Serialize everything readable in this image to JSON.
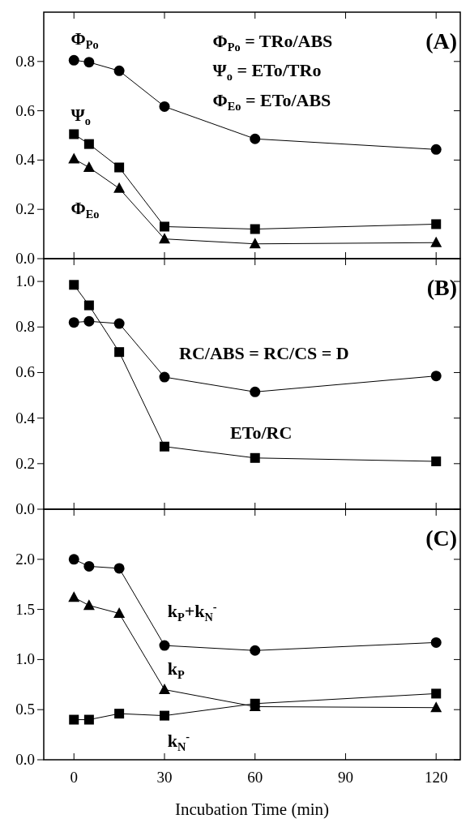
{
  "chart_data": [
    {
      "type": "line",
      "xlim": [
        -10,
        128
      ],
      "xticks": [
        0,
        30,
        60,
        90,
        120
      ],
      "ylim": [
        0,
        1.0
      ],
      "yticks": [
        {
          "value": 0,
          "label": "0.0"
        },
        0.2,
        0.4,
        0.6,
        0.8
      ],
      "tick_labels": "y",
      "grid": false,
      "line_style": "solid",
      "annotations": [
        "Φ$_{Po}$ = TRo/ABS",
        "Ψ$_{o}$ = ETo/TRo",
        "Φ$_{Eo}$ = ETo/ABS",
        "(A)"
      ],
      "series": [
        {
          "name": "Φ$_{Po}$",
          "color": "#000000",
          "marker": "circle",
          "x": [
            0,
            5,
            15,
            30,
            60,
            120
          ],
          "values": [
            0.805,
            0.797,
            0.762,
            0.617,
            0.486,
            0.443
          ]
        },
        {
          "name": "Ψ$_{o}$",
          "color": "#000000",
          "marker": "square",
          "x": [
            0,
            5,
            15,
            30,
            60,
            120
          ],
          "values": [
            0.505,
            0.465,
            0.37,
            0.13,
            0.12,
            0.14
          ]
        },
        {
          "name": "Φ$_{Eo}$",
          "color": "#000000",
          "marker": "triangle",
          "x": [
            0,
            5,
            15,
            30,
            60,
            120
          ],
          "values": [
            0.405,
            0.37,
            0.285,
            0.08,
            0.06,
            0.065
          ]
        }
      ]
    },
    {
      "type": "line",
      "xlim": [
        -10,
        128
      ],
      "xticks": [
        0,
        30,
        60,
        90,
        120
      ],
      "ylim": [
        0,
        1.1
      ],
      "yticks": [
        {
          "value": 0,
          "label": "0.0"
        },
        0.2,
        0.4,
        0.6,
        0.8,
        {
          "value": 1,
          "label": "1.0"
        }
      ],
      "tick_labels": "y",
      "grid": false,
      "line_style": "solid",
      "annotations": [
        "(B)"
      ],
      "series": [
        {
          "name": "RC/ABS = RC/CS = D",
          "color": "#000000",
          "marker": "circle",
          "x": [
            0,
            5,
            15,
            30,
            60,
            120
          ],
          "values": [
            0.82,
            0.825,
            0.815,
            0.58,
            0.515,
            0.585
          ]
        },
        {
          "name": "ETo/RC",
          "color": "#000000",
          "marker": "square",
          "x": [
            0,
            5,
            15,
            30,
            60,
            120
          ],
          "values": [
            0.985,
            0.895,
            0.69,
            0.275,
            0.225,
            0.21
          ]
        }
      ]
    },
    {
      "type": "line",
      "xlim": [
        -10,
        128
      ],
      "xticks": [
        0,
        30,
        60,
        90,
        120
      ],
      "ylim": [
        0,
        2.5
      ],
      "yticks": [
        {
          "value": 0,
          "label": "0.0"
        },
        0.5,
        {
          "value": 1,
          "label": "1.0"
        },
        1.5,
        {
          "value": 2,
          "label": "2.0"
        }
      ],
      "xlabel": "Incubation Time (min)",
      "grid": false,
      "line_style": "solid",
      "annotations": [
        "(C)"
      ],
      "series": [
        {
          "name": "k$_{P}$+k$_{N}$$^{-}$",
          "color": "#000000",
          "marker": "circle",
          "x": [
            0,
            5,
            15,
            30,
            60,
            120
          ],
          "values": [
            2.0,
            1.93,
            1.91,
            1.14,
            1.09,
            1.17
          ]
        },
        {
          "name": "k$_{P}$",
          "color": "#000000",
          "marker": "triangle",
          "x": [
            0,
            5,
            15,
            30,
            60,
            120
          ],
          "values": [
            1.62,
            1.54,
            1.46,
            0.7,
            0.53,
            0.52
          ]
        },
        {
          "name": "k$_{N}$$^{-}$",
          "color": "#000000",
          "marker": "square",
          "x": [
            0,
            5,
            15,
            30,
            60,
            120
          ],
          "values": [
            0.4,
            0.4,
            0.46,
            0.44,
            0.56,
            0.66
          ]
        }
      ]
    }
  ]
}
